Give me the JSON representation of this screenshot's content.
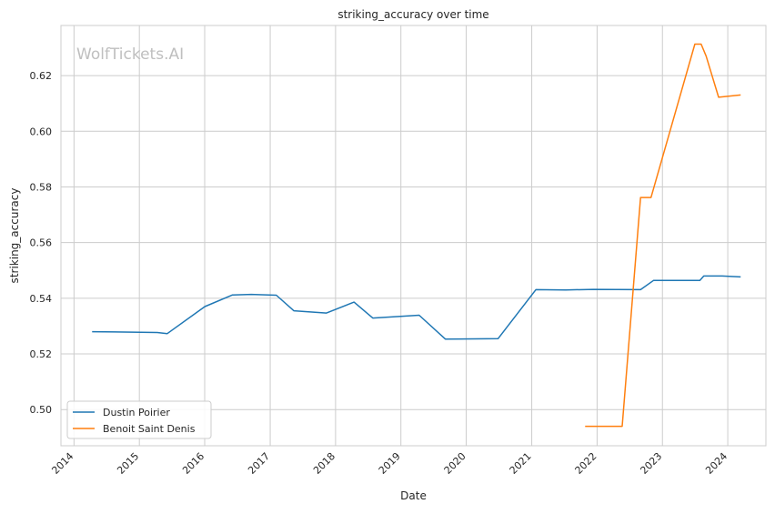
{
  "chart_data": {
    "type": "line",
    "title": "striking_accuracy over time",
    "xlabel": "Date",
    "ylabel": "striking_accuracy",
    "watermark": "WolfTickets.AI",
    "xlim": [
      "2013-10-20",
      "2024-08-01"
    ],
    "ylim": [
      0.487,
      0.638
    ],
    "x_ticks": [
      "2014",
      "2015",
      "2016",
      "2017",
      "2018",
      "2019",
      "2020",
      "2021",
      "2022",
      "2023",
      "2024"
    ],
    "y_ticks": [
      0.5,
      0.52,
      0.54,
      0.56,
      0.58,
      0.6,
      0.62
    ],
    "y_tick_labels": [
      "0.50",
      "0.52",
      "0.54",
      "0.56",
      "0.58",
      "0.60",
      "0.62"
    ],
    "grid": true,
    "legend_position": "lower-left",
    "series": [
      {
        "name": "Dustin Poirier",
        "color": "#1f77b4",
        "points": [
          [
            "2014-04-16",
            0.528
          ],
          [
            "2015-04-11",
            0.5277
          ],
          [
            "2015-06-06",
            0.5273
          ],
          [
            "2016-01-02",
            0.537
          ],
          [
            "2016-06-04",
            0.5412
          ],
          [
            "2016-09-17",
            0.5414
          ],
          [
            "2017-02-04",
            0.5411
          ],
          [
            "2017-05-13",
            0.5355
          ],
          [
            "2017-11-11",
            0.5347
          ],
          [
            "2018-04-14",
            0.5386
          ],
          [
            "2018-07-28",
            0.5329
          ],
          [
            "2019-04-13",
            0.5339
          ],
          [
            "2019-09-07",
            0.5253
          ],
          [
            "2020-06-27",
            0.5255
          ],
          [
            "2021-01-24",
            0.5431
          ],
          [
            "2021-07-10",
            0.543
          ],
          [
            "2021-12-11",
            0.5432
          ],
          [
            "2022-09-01",
            0.5431
          ],
          [
            "2022-11-12",
            0.5464
          ],
          [
            "2023-07-29",
            0.5464
          ],
          [
            "2023-08-20",
            0.548
          ],
          [
            "2023-12-01",
            0.548
          ],
          [
            "2024-03-09",
            0.5477
          ]
        ]
      },
      {
        "name": "Benoit Saint Denis",
        "color": "#ff7f0e",
        "points": [
          [
            "2021-10-30",
            0.494
          ],
          [
            "2022-05-21",
            0.494
          ],
          [
            "2022-09-01",
            0.5762
          ],
          [
            "2022-10-29",
            0.5762
          ],
          [
            "2023-07-01",
            0.6313
          ],
          [
            "2023-08-05",
            0.6313
          ],
          [
            "2023-09-02",
            0.627
          ],
          [
            "2023-11-11",
            0.6122
          ],
          [
            "2024-03-09",
            0.613
          ]
        ]
      }
    ]
  }
}
